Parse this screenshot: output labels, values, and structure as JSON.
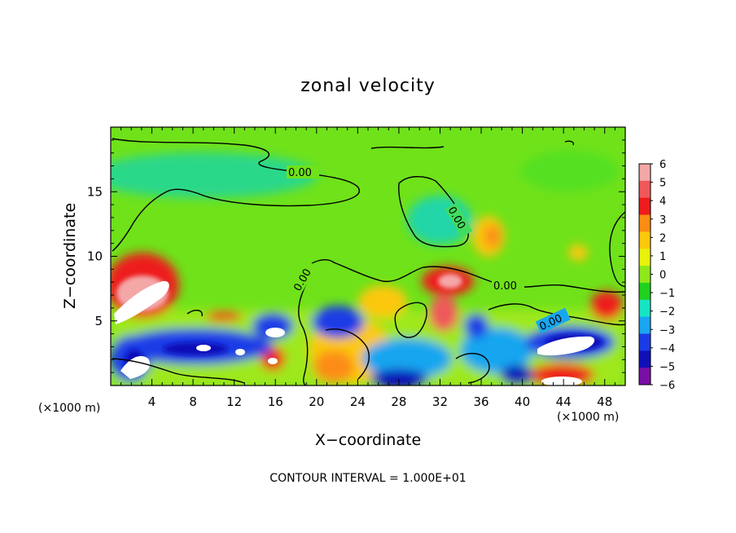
{
  "chart_data": {
    "type": "heatmap",
    "title": "zonal velocity",
    "xlabel": "X−coordinate",
    "ylabel": "Z−coordinate",
    "x_units": "(×1000 m)",
    "y_units": "(×1000 m)",
    "xlim": [
      0,
      50
    ],
    "ylim": [
      0,
      20
    ],
    "x_ticks": [
      "4",
      "8",
      "12",
      "16",
      "20",
      "24",
      "28",
      "32",
      "36",
      "40",
      "44",
      "48"
    ],
    "y_ticks": [
      "5",
      "10",
      "15"
    ],
    "colorbar": {
      "labels": [
        "6",
        "5",
        "4",
        "3",
        "2",
        "1",
        "0",
        "−1",
        "−2",
        "−3",
        "−4",
        "−5",
        "−6"
      ],
      "colors": [
        "#f4a7a7",
        "#f0585a",
        "#ee1c1c",
        "#fb8d12",
        "#fcc80c",
        "#e9f20c",
        "#8ee81a",
        "#20d21e",
        "#16e5c5",
        "#19a6f0",
        "#1a3ce6",
        "#1010b8",
        "#7a0ea6"
      ],
      "range": [
        -6,
        6
      ]
    },
    "contour_labels": [
      "0.00",
      "0.00",
      "0.00",
      "0.00",
      "0.00"
    ],
    "contour_interval_text": "CONTOUR INTERVAL = 1.000E+01"
  }
}
